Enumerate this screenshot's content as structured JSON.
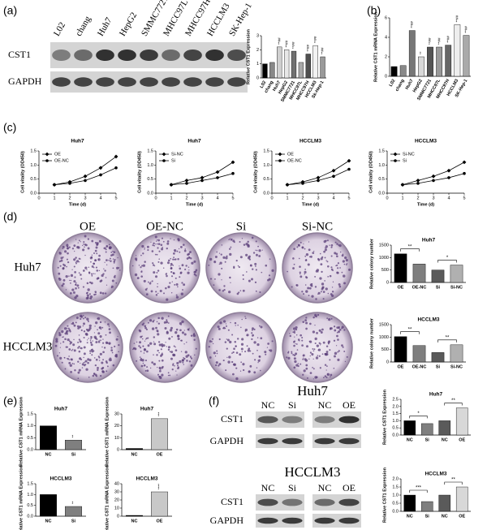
{
  "figure": {
    "panel_labels": [
      "(a)",
      "(b)",
      "(c)",
      "(d)",
      "(e)",
      "(f)"
    ],
    "a_blot": {
      "lanes": [
        "L02",
        "chang",
        "Huh7",
        "HepG2",
        "SMMC7721",
        "MHCC97L",
        "MHCC97H",
        "HCCLM3",
        "SK-Hep-1"
      ],
      "rows": [
        "CST1",
        "GAPDH"
      ]
    },
    "d_plates": {
      "columns": [
        "OE",
        "OE-NC",
        "Si",
        "Si-NC"
      ],
      "rows": [
        "Huh7",
        "HCCLM3"
      ]
    },
    "f_blots": [
      {
        "title": "Huh7",
        "lanes": [
          "NC",
          "Si",
          "NC",
          "OE"
        ],
        "rows": [
          "CST1",
          "GAPDH"
        ]
      },
      {
        "title": "HCCLM3",
        "lanes": [
          "NC",
          "Si",
          "NC",
          "OE"
        ],
        "rows": [
          "CST1",
          "GAPDH"
        ]
      }
    ]
  },
  "chart_data": [
    {
      "type": "bar",
      "ylabel": "Relative CST1 Expression",
      "categories": [
        "L02",
        "chang",
        "Huh7",
        "HepG2",
        "SMMC7721",
        "MHCC97L",
        "MHCC97H",
        "HCCLM3",
        "Sk-Hep-1"
      ],
      "values": [
        1.0,
        1.1,
        2.2,
        2.0,
        1.9,
        1.1,
        1.7,
        2.3,
        1.5
      ],
      "colors": [
        "#000000",
        "#888888",
        "#d0d0d0",
        "#e8e8e8",
        "#707070",
        "#a8a8a8",
        "#505050",
        "#f2f2f2",
        "#9a9a9a"
      ],
      "ylim": [
        0,
        3
      ],
      "yticks": [
        0,
        1,
        2,
        3
      ],
      "markers": [
        {
          "category": "Huh7",
          "label": "**##"
        },
        {
          "category": "HepG2",
          "label": "**##"
        },
        {
          "category": "SMMC7721",
          "label": "**##"
        },
        {
          "category": "MHCC97H",
          "label": "**##"
        },
        {
          "category": "HCCLM3",
          "label": "**##"
        },
        {
          "category": "Sk-Hep-1",
          "label": "**##"
        }
      ]
    },
    {
      "type": "bar",
      "ylabel": "Relative CST1 mRNA Expression",
      "categories": [
        "L02",
        "chang",
        "Huh7",
        "HepG2",
        "SMMC7721",
        "MHCC97L",
        "MHCC97H",
        "HCCLM3",
        "SK-Hep-1"
      ],
      "values": [
        1.0,
        1.1,
        4.7,
        2.0,
        3.0,
        3.0,
        3.2,
        5.3,
        4.2
      ],
      "colors": [
        "#000000",
        "#888888",
        "#777777",
        "#d8d8d8",
        "#555555",
        "#9a9a9a",
        "#666666",
        "#eeeeee",
        "#aaaaaa"
      ],
      "ylim": [
        0,
        6
      ],
      "yticks": [
        0,
        2,
        4,
        6
      ],
      "markers": [
        {
          "category": "Huh7",
          "label": "**##"
        },
        {
          "category": "HepG2",
          "label": "**"
        },
        {
          "category": "SMMC7721",
          "label": "**##"
        },
        {
          "category": "MHCC97L",
          "label": "**##"
        },
        {
          "category": "MHCC97H",
          "label": "**##"
        },
        {
          "category": "HCCLM3",
          "label": "**##"
        },
        {
          "category": "SK-Hep-1",
          "label": "**##"
        }
      ]
    },
    {
      "type": "line",
      "title": "Huh7",
      "xlabel": "Time (d)",
      "ylabel": "Cell vitality (OD450)",
      "x": [
        1,
        2,
        3,
        4,
        5
      ],
      "xlim": [
        0,
        5
      ],
      "xticks": [
        0,
        1,
        2,
        3,
        4,
        5
      ],
      "ylim": [
        0,
        1.5
      ],
      "yticks": [
        {
          "value": 0,
          "label": "0.0"
        },
        {
          "value": 0.5,
          "label": "0.5"
        },
        {
          "value": 1,
          "label": "1.0"
        },
        {
          "value": 1.5,
          "label": "1.5"
        }
      ],
      "series": [
        {
          "name": "OE",
          "color": "#000000",
          "marker": "diamond",
          "values": [
            0.3,
            0.4,
            0.6,
            0.9,
            1.3
          ]
        },
        {
          "name": "OE-NC",
          "color": "#000000",
          "marker": "circle",
          "values": [
            0.3,
            0.35,
            0.45,
            0.65,
            0.9
          ]
        }
      ]
    },
    {
      "type": "line",
      "title": "Huh7",
      "xlabel": "Time (d)",
      "ylabel": "Cell vitality (OD450)",
      "x": [
        1,
        2,
        3,
        4,
        5
      ],
      "xlim": [
        0,
        5
      ],
      "xticks": [
        0,
        1,
        2,
        3,
        4,
        5
      ],
      "ylim": [
        0,
        1.5
      ],
      "yticks": [
        {
          "value": 0,
          "label": "0.0"
        },
        {
          "value": 0.5,
          "label": "0.5"
        },
        {
          "value": 1,
          "label": "1.0"
        },
        {
          "value": 1.5,
          "label": "1.5"
        }
      ],
      "series": [
        {
          "name": "Si-NC",
          "color": "#000000",
          "marker": "diamond",
          "values": [
            0.3,
            0.45,
            0.55,
            0.75,
            1.1
          ]
        },
        {
          "name": "Si",
          "color": "#000000",
          "marker": "circle",
          "values": [
            0.3,
            0.35,
            0.45,
            0.55,
            0.7
          ]
        }
      ]
    },
    {
      "type": "line",
      "title": "HCCLM3",
      "xlabel": "Time (d)",
      "ylabel": "Cell vitality (OD450)",
      "x": [
        1,
        2,
        3,
        4,
        5
      ],
      "xlim": [
        0,
        5
      ],
      "xticks": [
        0,
        1,
        2,
        3,
        4,
        5
      ],
      "ylim": [
        0,
        1.5
      ],
      "yticks": [
        {
          "value": 0,
          "label": "0.0"
        },
        {
          "value": 0.5,
          "label": "0.5"
        },
        {
          "value": 1,
          "label": "1.0"
        },
        {
          "value": 1.5,
          "label": "1.5"
        }
      ],
      "series": [
        {
          "name": "OE",
          "color": "#000000",
          "marker": "diamond",
          "values": [
            0.3,
            0.4,
            0.55,
            0.8,
            1.15
          ]
        },
        {
          "name": "OE-NC",
          "color": "#000000",
          "marker": "circle",
          "values": [
            0.3,
            0.35,
            0.45,
            0.6,
            0.85
          ]
        }
      ]
    },
    {
      "type": "line",
      "title": "HCCLM3",
      "xlabel": "Time (d)",
      "ylabel": "Cell vitality (OD450)",
      "x": [
        1,
        2,
        3,
        4,
        5
      ],
      "xlim": [
        0,
        5
      ],
      "xticks": [
        0,
        1,
        2,
        3,
        4,
        5
      ],
      "ylim": [
        0,
        1.5
      ],
      "yticks": [
        {
          "value": 0,
          "label": "0.0"
        },
        {
          "value": 0.5,
          "label": "0.5"
        },
        {
          "value": 1,
          "label": "1.0"
        },
        {
          "value": 1.5,
          "label": "1.5"
        }
      ],
      "series": [
        {
          "name": "Si-NC",
          "color": "#000000",
          "marker": "diamond",
          "values": [
            0.3,
            0.45,
            0.6,
            0.8,
            1.1
          ]
        },
        {
          "name": "Si",
          "color": "#000000",
          "marker": "circle",
          "values": [
            0.3,
            0.35,
            0.45,
            0.55,
            0.7
          ]
        }
      ]
    },
    {
      "type": "bar",
      "title": "Huh7",
      "ylabel": "Relative colony number",
      "categories": [
        "OE",
        "OE-NC",
        "Si",
        "Si-NC"
      ],
      "values": [
        1150,
        740,
        500,
        700
      ],
      "colors": [
        "#000000",
        "#7f7f7f",
        "#5a5a5a",
        "#b0b0b0"
      ],
      "ylim": [
        0,
        1500
      ],
      "yticks": [
        0,
        500,
        1000,
        1500
      ],
      "brackets": [
        {
          "label": "**",
          "categories": [
            "OE",
            "OE-NC"
          ]
        },
        {
          "label": "*",
          "categories": [
            "Si",
            "Si-NC"
          ]
        }
      ]
    },
    {
      "type": "bar",
      "title": "HCCLM3",
      "ylabel": "Relative colony number",
      "categories": [
        "OE",
        "OE-NC",
        "Si",
        "Si-NC"
      ],
      "values": [
        1020,
        660,
        380,
        690
      ],
      "colors": [
        "#000000",
        "#7f7f7f",
        "#5a5a5a",
        "#b0b0b0"
      ],
      "ylim": [
        0,
        1500
      ],
      "yticks": [
        0,
        500,
        1000,
        1500
      ],
      "brackets": [
        {
          "label": "**",
          "categories": [
            "OE",
            "OE-NC"
          ]
        },
        {
          "label": "**",
          "categories": [
            "Si",
            "Si-NC"
          ]
        }
      ]
    },
    {
      "type": "bar",
      "title": "Huh7",
      "ylabel": "Relative CST1 mRNA Expression",
      "categories": [
        "NC",
        "Si"
      ],
      "values": [
        1.0,
        0.4
      ],
      "colors": [
        "#000000",
        "#7f7f7f"
      ],
      "ylim": [
        0,
        1.5
      ],
      "yticks": [
        {
          "value": 0,
          "label": "0.0"
        },
        {
          "value": 0.5,
          "label": "0.5"
        },
        {
          "value": 1,
          "label": "1.0"
        },
        {
          "value": 1.5,
          "label": "1.5"
        }
      ],
      "markers": [
        {
          "category": "Si",
          "label": "**"
        }
      ]
    },
    {
      "type": "bar",
      "title": "Huh7",
      "ylabel": "Relative CST1 mRNA Expression",
      "categories": [
        "NC",
        "OE"
      ],
      "values": [
        1,
        26
      ],
      "colors": [
        "#000000",
        "#c8c8c8"
      ],
      "ylim": [
        0,
        30
      ],
      "yticks": [
        0,
        10,
        20,
        30
      ],
      "markers": [
        {
          "category": "OE",
          "label": "***"
        }
      ]
    },
    {
      "type": "bar",
      "title": "HCCLM3",
      "ylabel": "Relative CST1 mRNA Expression",
      "categories": [
        "NC",
        "Si"
      ],
      "values": [
        1.0,
        0.45
      ],
      "colors": [
        "#000000",
        "#7f7f7f"
      ],
      "ylim": [
        0,
        1.5
      ],
      "yticks": [
        {
          "value": 0,
          "label": "0.0"
        },
        {
          "value": 0.5,
          "label": "0.5"
        },
        {
          "value": 1,
          "label": "1.0"
        },
        {
          "value": 1.5,
          "label": "1.5"
        }
      ],
      "markers": [
        {
          "category": "Si",
          "label": "**"
        }
      ]
    },
    {
      "type": "bar",
      "title": "HCCLM3",
      "ylabel": "Relative CST1 mRNA Expression",
      "categories": [
        "NC",
        "OE"
      ],
      "values": [
        1,
        30
      ],
      "colors": [
        "#000000",
        "#c8c8c8"
      ],
      "ylim": [
        0,
        40
      ],
      "yticks": [
        0,
        10,
        20,
        30,
        40
      ],
      "markers": [
        {
          "category": "OE",
          "label": "****"
        }
      ]
    },
    {
      "type": "bar",
      "title": "Huh7",
      "ylabel": "Relative CST1 Expression",
      "categories": [
        "NC",
        "Si",
        "NC",
        "OE"
      ],
      "values": [
        1.0,
        0.8,
        1.0,
        1.9
      ],
      "colors": [
        "#000000",
        "#7f7f7f",
        "#5a5a5a",
        "#d8d8d8"
      ],
      "ylim": [
        0,
        2.5
      ],
      "yticks": [
        {
          "value": 0,
          "label": "0.0"
        },
        {
          "value": 0.5,
          "label": "0.5"
        },
        {
          "value": 1,
          "label": "1.0"
        },
        {
          "value": 1.5,
          "label": "1.5"
        },
        {
          "value": 2,
          "label": "2.0"
        },
        {
          "value": 2.5,
          "label": "2.5"
        }
      ],
      "brackets": [
        {
          "label": "*",
          "categories": [
            0,
            1
          ]
        },
        {
          "label": "**",
          "categories": [
            2,
            3
          ]
        }
      ]
    },
    {
      "type": "bar",
      "title": "HCCLM3",
      "ylabel": "Relative CST1 Expression",
      "categories": [
        "NC",
        "Si",
        "NC",
        "OE"
      ],
      "values": [
        1.0,
        0.6,
        1.0,
        1.5
      ],
      "colors": [
        "#000000",
        "#7f7f7f",
        "#5a5a5a",
        "#d8d8d8"
      ],
      "ylim": [
        0,
        2.0
      ],
      "yticks": [
        {
          "value": 0,
          "label": "0.0"
        },
        {
          "value": 0.5,
          "label": "0.5"
        },
        {
          "value": 1,
          "label": "1.0"
        },
        {
          "value": 1.5,
          "label": "1.5"
        },
        {
          "value": 2,
          "label": "2.0"
        }
      ],
      "brackets": [
        {
          "label": "***",
          "categories": [
            0,
            1
          ]
        },
        {
          "label": "**",
          "categories": [
            2,
            3
          ]
        }
      ]
    }
  ]
}
